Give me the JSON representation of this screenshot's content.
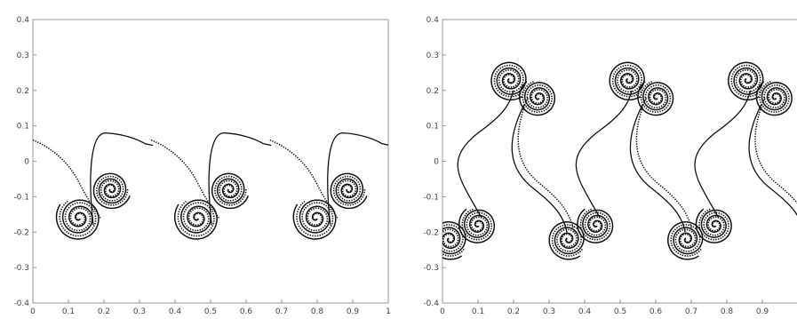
{
  "chart_data": [
    {
      "type": "line",
      "title": "",
      "xlabel": "",
      "ylabel": "",
      "xlim": [
        0,
        1
      ],
      "ylim": [
        -0.4,
        0.4
      ],
      "x_tick_labels": [
        "0",
        "0.1",
        "0.2",
        "0.3",
        "0.4",
        "0.5",
        "0.6",
        "0.7",
        "0.8",
        "0.9",
        "1"
      ],
      "y_tick_labels": [
        "0.4",
        "0.3",
        "0.2",
        "0.1",
        "0",
        "-0.1",
        "-0.2",
        "-0.3",
        "-0.4"
      ],
      "grid": false,
      "line_color": "#111111",
      "series": [
        {
          "description_of_marks": "solid and dotted vortex-sheet curves, three rolled-up vortex pairs",
          "periodic_x": [
            0,
            0.333,
            0.667
          ],
          "vortex_centers": [
            {
              "x": 0.13,
              "y": -0.16,
              "turns": 3.5
            },
            {
              "x": 0.22,
              "y": -0.08,
              "turns": 3.5
            }
          ],
          "sheet_top_y": 0.08,
          "sheet_left_y": 0.06
        }
      ]
    },
    {
      "type": "line",
      "title": "",
      "xlabel": "",
      "ylabel": "",
      "xlim": [
        0,
        1
      ],
      "ylim": [
        -0.4,
        0.4
      ],
      "x_tick_labels": [
        "0",
        "0.1",
        "0.2",
        "0.3",
        "0.4",
        "0.5",
        "0.6",
        "0.7",
        "0.8",
        "0.9"
      ],
      "y_tick_labels": [
        "0.4",
        "0.3",
        "0.2",
        "0.1",
        "0",
        "-0.1",
        "-0.2",
        "-0.3",
        "-0.4"
      ],
      "grid": false,
      "line_color": "#111111",
      "series": [
        {
          "description_of_marks": "solid and dotted vortex-sheet curves, vortex pairs at top and bottom connected by S-shaped sheets",
          "periodic_x": [
            0,
            0.333,
            0.667
          ],
          "upper_vortex_centers": [
            {
              "x": 0.19,
              "y": 0.23,
              "turns": 3.5
            },
            {
              "x": 0.27,
              "y": 0.18,
              "turns": 3.5
            }
          ],
          "lower_vortex_centers": [
            {
              "x": 0.02,
              "y": -0.22,
              "turns": 3.5
            },
            {
              "x": 0.1,
              "y": -0.18,
              "turns": 3.5
            }
          ]
        }
      ]
    }
  ]
}
